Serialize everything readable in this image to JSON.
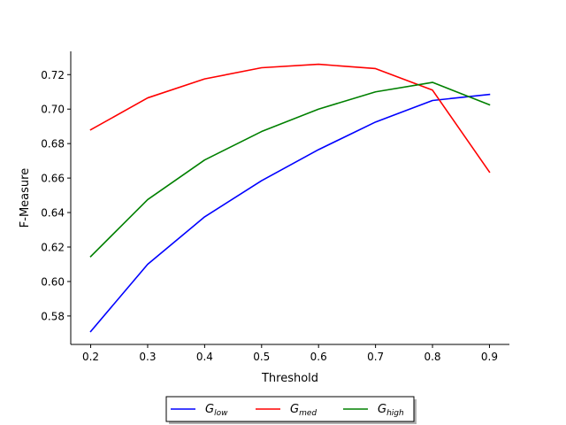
{
  "chart_data": {
    "type": "line",
    "xlabel": "Threshold",
    "ylabel": "F-Measure",
    "x": [
      0.2,
      0.3,
      0.4,
      0.5,
      0.6,
      0.7,
      0.8,
      0.9
    ],
    "xlim": [
      0.165,
      0.935
    ],
    "ylim": [
      0.5635,
      0.7335
    ],
    "xticks": [
      "0.2",
      "0.3",
      "0.4",
      "0.5",
      "0.6",
      "0.7",
      "0.8",
      "0.9"
    ],
    "yticks": [
      "0.58",
      "0.60",
      "0.62",
      "0.64",
      "0.66",
      "0.68",
      "0.70",
      "0.72"
    ],
    "grid": false,
    "legend_position": "bottom-center",
    "series": [
      {
        "name": "G_low",
        "label_main": "G",
        "label_sub": "low",
        "color": "#0000ff",
        "values": [
          0.571,
          0.61,
          0.6375,
          0.6585,
          0.6765,
          0.6925,
          0.705,
          0.7085
        ]
      },
      {
        "name": "G_med",
        "label_main": "G",
        "label_sub": "med",
        "color": "#ff0000",
        "values": [
          0.688,
          0.7065,
          0.7175,
          0.724,
          0.726,
          0.7235,
          0.711,
          0.6635
        ]
      },
      {
        "name": "G_high",
        "label_main": "G",
        "label_sub": "high",
        "color": "#008000",
        "values": [
          0.6145,
          0.6475,
          0.6705,
          0.687,
          0.7,
          0.71,
          0.7155,
          0.7025
        ]
      }
    ]
  }
}
